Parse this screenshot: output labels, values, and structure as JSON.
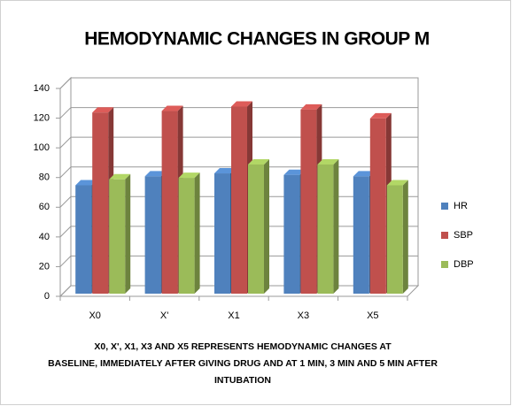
{
  "chart_data": {
    "type": "bar3d",
    "title": "HEMODYNAMIC CHANGES IN GROUP M",
    "categories": [
      "X0",
      "X'",
      "X1",
      "X3",
      "X5"
    ],
    "series": [
      {
        "name": "HR",
        "color": "#4f81bd",
        "values": [
          73,
          79,
          81,
          80,
          79
        ]
      },
      {
        "name": "SBP",
        "color": "#c0504d",
        "values": [
          122,
          123,
          126,
          124,
          118
        ]
      },
      {
        "name": "DBP",
        "color": "#9bbb59",
        "values": [
          77,
          78,
          87,
          87,
          73
        ]
      }
    ],
    "ylim": [
      0,
      140
    ],
    "yticks": [
      0,
      20,
      40,
      60,
      80,
      100,
      120,
      140
    ],
    "grid": true,
    "legend": "right",
    "caption": [
      "X0, X', X1, X3 AND X5 REPRESENTS HEMODYNAMIC CHANGES AT",
      "BASELINE, IMMEDIATELY AFTER GIVING DRUG AND AT 1 MIN, 3 MIN AND 5 MIN AFTER",
      "INTUBATION"
    ]
  }
}
